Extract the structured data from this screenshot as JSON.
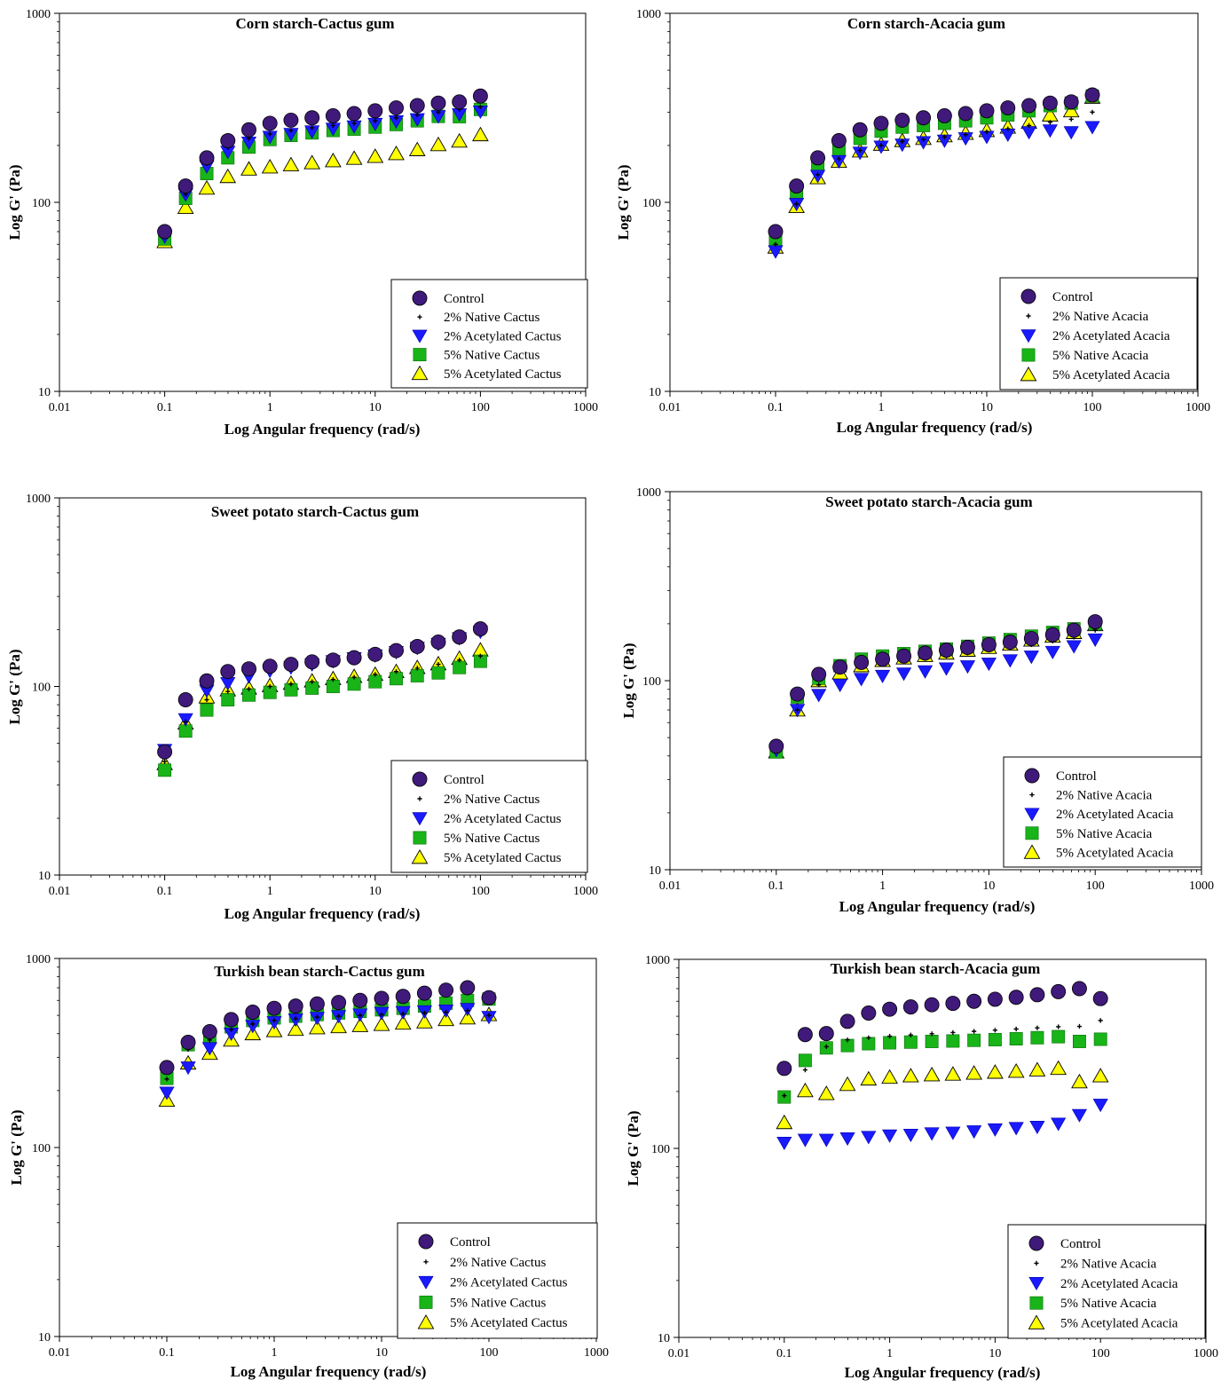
{
  "chart_data": [
    {
      "type": "scatter",
      "title": "Corn starch-Cactus gum",
      "xlabel": "Log Angular frequency (rad/s)",
      "ylabel": "Log G' (Pa)",
      "xscale": "log",
      "yscale": "log",
      "xlim": [
        0.01,
        1000
      ],
      "ylim": [
        10,
        1000
      ],
      "xticks": [
        "0.01",
        "0.1",
        "1",
        "10",
        "100",
        "1000"
      ],
      "yticks": [
        "10",
        "100",
        "1000"
      ],
      "legend_position": "lower-right",
      "x": [
        0.1,
        0.158,
        0.251,
        0.398,
        0.631,
        1,
        1.585,
        2.512,
        3.981,
        6.31,
        10,
        15.85,
        25.12,
        39.81,
        63.1,
        100
      ],
      "series": [
        {
          "name": "Control",
          "marker": "circle",
          "color": "#3f1a7a",
          "values": [
            70,
            122,
            172,
            212,
            242,
            262,
            272,
            280,
            287,
            295,
            305,
            316,
            325,
            335,
            340,
            365
          ]
        },
        {
          "name": "2% Native Cactus",
          "marker": "plus",
          "color": "#000000",
          "values": [
            67,
            110,
            160,
            195,
            218,
            230,
            240,
            248,
            255,
            262,
            270,
            280,
            290,
            300,
            310,
            320
          ]
        },
        {
          "name": "2% Acetylated Cactus",
          "marker": "triangle-down",
          "color": "#1a1aff",
          "values": [
            66,
            110,
            155,
            185,
            207,
            222,
            230,
            237,
            245,
            252,
            260,
            268,
            275,
            285,
            292,
            302
          ]
        },
        {
          "name": "5% Native Cactus",
          "marker": "square",
          "color": "#18b418",
          "values": [
            64,
            105,
            142,
            172,
            196,
            215,
            226,
            233,
            240,
            244,
            250,
            258,
            270,
            285,
            284,
            310
          ]
        },
        {
          "name": "5% Acetylated Cactus",
          "marker": "triangle-up",
          "color": "#ffff00",
          "values": [
            62,
            94,
            119,
            137,
            150,
            154,
            158,
            162,
            166,
            171,
            175,
            181,
            190,
            202,
            211,
            228
          ]
        }
      ]
    },
    {
      "type": "scatter",
      "title": "Corn starch-Acacia gum",
      "xlabel": "Log Angular frequency (rad/s)",
      "ylabel": "Log G' (Pa)",
      "xscale": "log",
      "yscale": "log",
      "xlim": [
        0.01,
        1000
      ],
      "ylim": [
        10,
        1000
      ],
      "xticks": [
        "0.01",
        "0.1",
        "1",
        "10",
        "100",
        "1000"
      ],
      "yticks": [
        "10",
        "100",
        "1000"
      ],
      "legend_position": "lower-right",
      "x": [
        0.1,
        0.158,
        0.251,
        0.398,
        0.631,
        1,
        1.585,
        2.512,
        3.981,
        6.31,
        10,
        15.85,
        25.12,
        39.81,
        63.1,
        100
      ],
      "series": [
        {
          "name": "Control",
          "marker": "circle",
          "color": "#3f1a7a",
          "values": [
            70,
            122,
            172,
            212,
            242,
            262,
            272,
            280,
            287,
            295,
            305,
            316,
            325,
            335,
            340,
            370
          ]
        },
        {
          "name": "2% Native Acacia",
          "marker": "plus",
          "color": "#000000",
          "values": [
            60,
            98,
            140,
            170,
            188,
            200,
            210,
            215,
            222,
            228,
            236,
            245,
            255,
            265,
            275,
            300
          ]
        },
        {
          "name": "2% Acetylated Acacia",
          "marker": "triangle-down",
          "color": "#1a1aff",
          "values": [
            55,
            98,
            138,
            165,
            183,
            197,
            202,
            208,
            212,
            218,
            222,
            228,
            235,
            240,
            235,
            250
          ]
        },
        {
          "name": "5% Native Acacia",
          "marker": "square",
          "color": "#18b418",
          "values": [
            63,
            112,
            158,
            190,
            218,
            238,
            250,
            255,
            262,
            270,
            280,
            290,
            305,
            325,
            335,
            365
          ]
        },
        {
          "name": "5% Acetylated Acacia",
          "marker": "triangle-up",
          "color": "#ffff00",
          "values": [
            58,
            95,
            135,
            165,
            187,
            203,
            212,
            218,
            225,
            232,
            240,
            250,
            265,
            290,
            305,
            360
          ]
        }
      ]
    },
    {
      "type": "scatter",
      "title": "Sweet potato starch-Cactus gum",
      "xlabel": "Log Angular frequency (rad/s)",
      "ylabel": "Log G' (Pa)",
      "xscale": "log",
      "yscale": "log",
      "xlim": [
        0.01,
        1000
      ],
      "ylim": [
        10,
        1000
      ],
      "xticks": [
        "0.01",
        "0.1",
        "1",
        "10",
        "100",
        "1000"
      ],
      "yticks": [
        "10",
        "100",
        "1000"
      ],
      "legend_position": "lower-right",
      "x": [
        0.1,
        0.158,
        0.251,
        0.398,
        0.631,
        1,
        1.585,
        2.512,
        3.981,
        6.31,
        10,
        15.85,
        25.12,
        39.81,
        63.1,
        100
      ],
      "series": [
        {
          "name": "Control",
          "marker": "circle",
          "color": "#3f1a7a",
          "values": [
            45,
            85,
            107,
            120,
            124,
            128,
            131,
            135,
            138,
            142,
            148,
            155,
            163,
            172,
            183,
            202
          ]
        },
        {
          "name": "2% Native Cactus",
          "marker": "plus",
          "color": "#000000",
          "values": [
            40,
            65,
            85,
            94,
            97,
            100,
            103,
            106,
            109,
            112,
            116,
            120,
            125,
            131,
            138,
            145
          ]
        },
        {
          "name": "2% Acetylated Cactus",
          "marker": "triangle-down",
          "color": "#1a1aff",
          "values": [
            46,
            67,
            95,
            104,
            113,
            121,
            126,
            131,
            136,
            141,
            146,
            152,
            160,
            168,
            180,
            195
          ]
        },
        {
          "name": "5% Native Cactus",
          "marker": "square",
          "color": "#18b418",
          "values": [
            36,
            58,
            75,
            85,
            90,
            93,
            96,
            98,
            100,
            103,
            106,
            110,
            114,
            118,
            126,
            136
          ]
        },
        {
          "name": "5% Acetylated Cactus",
          "marker": "triangle-up",
          "color": "#ffff00",
          "values": [
            39,
            64,
            88,
            96,
            98,
            101,
            104,
            107,
            110,
            113,
            116,
            120,
            126,
            132,
            141,
            156
          ]
        }
      ]
    },
    {
      "type": "scatter",
      "title": "Sweet potato starch-Acacia gum",
      "xlabel": "Log Angular frequency (rad/s)",
      "ylabel": "Log G' (Pa)",
      "xscale": "log",
      "yscale": "log",
      "xlim": [
        0.01,
        1000
      ],
      "ylim": [
        10,
        1000
      ],
      "xticks": [
        "0.01",
        "0.1",
        "1",
        "10",
        "100",
        "1000"
      ],
      "yticks": [
        "10",
        "100",
        "1000"
      ],
      "legend_position": "lower-right",
      "x": [
        0.1,
        0.158,
        0.251,
        0.398,
        0.631,
        1,
        1.585,
        2.512,
        3.981,
        6.31,
        10,
        15.85,
        25.12,
        39.81,
        63.1,
        100
      ],
      "series": [
        {
          "name": "Control",
          "marker": "circle",
          "color": "#3f1a7a",
          "values": [
            45,
            85,
            108,
            118,
            125,
            130,
            135,
            140,
            145,
            150,
            155,
            160,
            167,
            175,
            185,
            205
          ]
        },
        {
          "name": "2% Native Acacia",
          "marker": "plus",
          "color": "#000000",
          "values": [
            43,
            70,
            95,
            112,
            120,
            125,
            128,
            131,
            135,
            140,
            145,
            150,
            155,
            162,
            170,
            185
          ]
        },
        {
          "name": "2% Acetylated Acacia",
          "marker": "triangle-down",
          "color": "#1a1aff",
          "values": [
            43,
            70,
            84,
            95,
            102,
            106,
            109,
            112,
            116,
            119,
            123,
            128,
            134,
            142,
            152,
            165
          ]
        },
        {
          "name": "5% Native Acacia",
          "marker": "square",
          "color": "#18b418",
          "values": [
            42,
            82,
            103,
            120,
            130,
            135,
            139,
            143,
            147,
            152,
            158,
            165,
            172,
            180,
            188,
            200
          ]
        },
        {
          "name": "5% Acetylated Acacia",
          "marker": "triangle-up",
          "color": "#ffff00",
          "values": [
            42,
            70,
            100,
            110,
            120,
            128,
            132,
            136,
            140,
            145,
            150,
            156,
            164,
            172,
            180,
            198
          ]
        }
      ]
    },
    {
      "type": "scatter",
      "title": "Turkish bean starch-Cactus gum",
      "xlabel": "Log Angular frequency (rad/s)",
      "ylabel": "Log G' (Pa)",
      "xscale": "log",
      "yscale": "log",
      "xlim": [
        0.01,
        1000
      ],
      "ylim": [
        10,
        1000
      ],
      "xticks": [
        "0.01",
        "0.1",
        "1",
        "10",
        "100",
        "1000"
      ],
      "yticks": [
        "10",
        "100",
        "1000"
      ],
      "legend_position": "lower-right",
      "x": [
        0.1,
        0.158,
        0.251,
        0.398,
        0.631,
        1,
        1.585,
        2.512,
        3.981,
        6.31,
        10,
        15.85,
        25.12,
        39.81,
        63.1,
        100
      ],
      "series": [
        {
          "name": "Control",
          "marker": "circle",
          "color": "#3f1a7a",
          "values": [
            265,
            360,
            410,
            475,
            520,
            545,
            560,
            575,
            585,
            600,
            615,
            630,
            655,
            680,
            700,
            620
          ]
        },
        {
          "name": "2% Native Cactus",
          "marker": "plus",
          "color": "#000000",
          "values": [
            230,
            330,
            370,
            420,
            450,
            470,
            480,
            490,
            495,
            500,
            505,
            510,
            515,
            520,
            530,
            500
          ]
        },
        {
          "name": "2% Acetylated Cactus",
          "marker": "triangle-down",
          "color": "#1a1aff",
          "values": [
            195,
            265,
            335,
            400,
            440,
            460,
            475,
            485,
            495,
            505,
            515,
            520,
            525,
            530,
            540,
            490
          ]
        },
        {
          "name": "5% Native Cactus",
          "marker": "square",
          "color": "#18b418",
          "values": [
            232,
            350,
            380,
            435,
            470,
            485,
            495,
            505,
            515,
            525,
            535,
            545,
            560,
            580,
            600,
            610
          ]
        },
        {
          "name": "5% Acetylated Cactus",
          "marker": "triangle-up",
          "color": "#ffff00",
          "values": [
            178,
            280,
            315,
            370,
            400,
            415,
            422,
            430,
            436,
            442,
            448,
            455,
            462,
            475,
            485,
            505
          ]
        }
      ]
    },
    {
      "type": "scatter",
      "title": "Turkish bean starch-Acacia gum",
      "xlabel": "Log Angular frequency (rad/s)",
      "ylabel": "Log G' (Pa)",
      "xscale": "log",
      "yscale": "log",
      "xlim": [
        0.01,
        1000
      ],
      "ylim": [
        10,
        1000
      ],
      "xticks": [
        "0.01",
        "0.1",
        "1",
        "10",
        "100",
        "1000"
      ],
      "yticks": [
        "10",
        "100",
        "1000"
      ],
      "legend_position": "lower-right",
      "x": [
        0.1,
        0.158,
        0.251,
        0.398,
        0.631,
        1,
        1.585,
        2.512,
        3.981,
        6.31,
        10,
        15.85,
        25.12,
        39.81,
        63.1,
        100
      ],
      "series": [
        {
          "name": "Control",
          "marker": "circle",
          "color": "#3f1a7a",
          "values": [
            265,
            400,
            405,
            470,
            520,
            545,
            560,
            575,
            585,
            600,
            615,
            630,
            650,
            675,
            700,
            620
          ]
        },
        {
          "name": "2% Native Acacia",
          "marker": "plus",
          "color": "#000000",
          "values": [
            190,
            260,
            345,
            375,
            385,
            392,
            398,
            404,
            410,
            416,
            422,
            428,
            434,
            440,
            442,
            475
          ]
        },
        {
          "name": "2% Acetylated Acacia",
          "marker": "triangle-down",
          "color": "#1a1aff",
          "values": [
            107,
            111,
            111,
            113,
            115,
            117,
            118,
            120,
            121,
            123,
            126,
            128,
            130,
            135,
            150,
            170
          ]
        },
        {
          "name": "5% Native Acacia",
          "marker": "square",
          "color": "#18b418",
          "values": [
            187,
            292,
            340,
            350,
            358,
            362,
            365,
            368,
            370,
            373,
            376,
            380,
            385,
            390,
            368,
            378
          ]
        },
        {
          "name": "5% Acetylated Acacia",
          "marker": "triangle-up",
          "color": "#ffff00",
          "values": [
            137,
            202,
            195,
            218,
            233,
            238,
            242,
            245,
            247,
            250,
            253,
            256,
            260,
            265,
            225,
            242
          ]
        }
      ]
    }
  ]
}
